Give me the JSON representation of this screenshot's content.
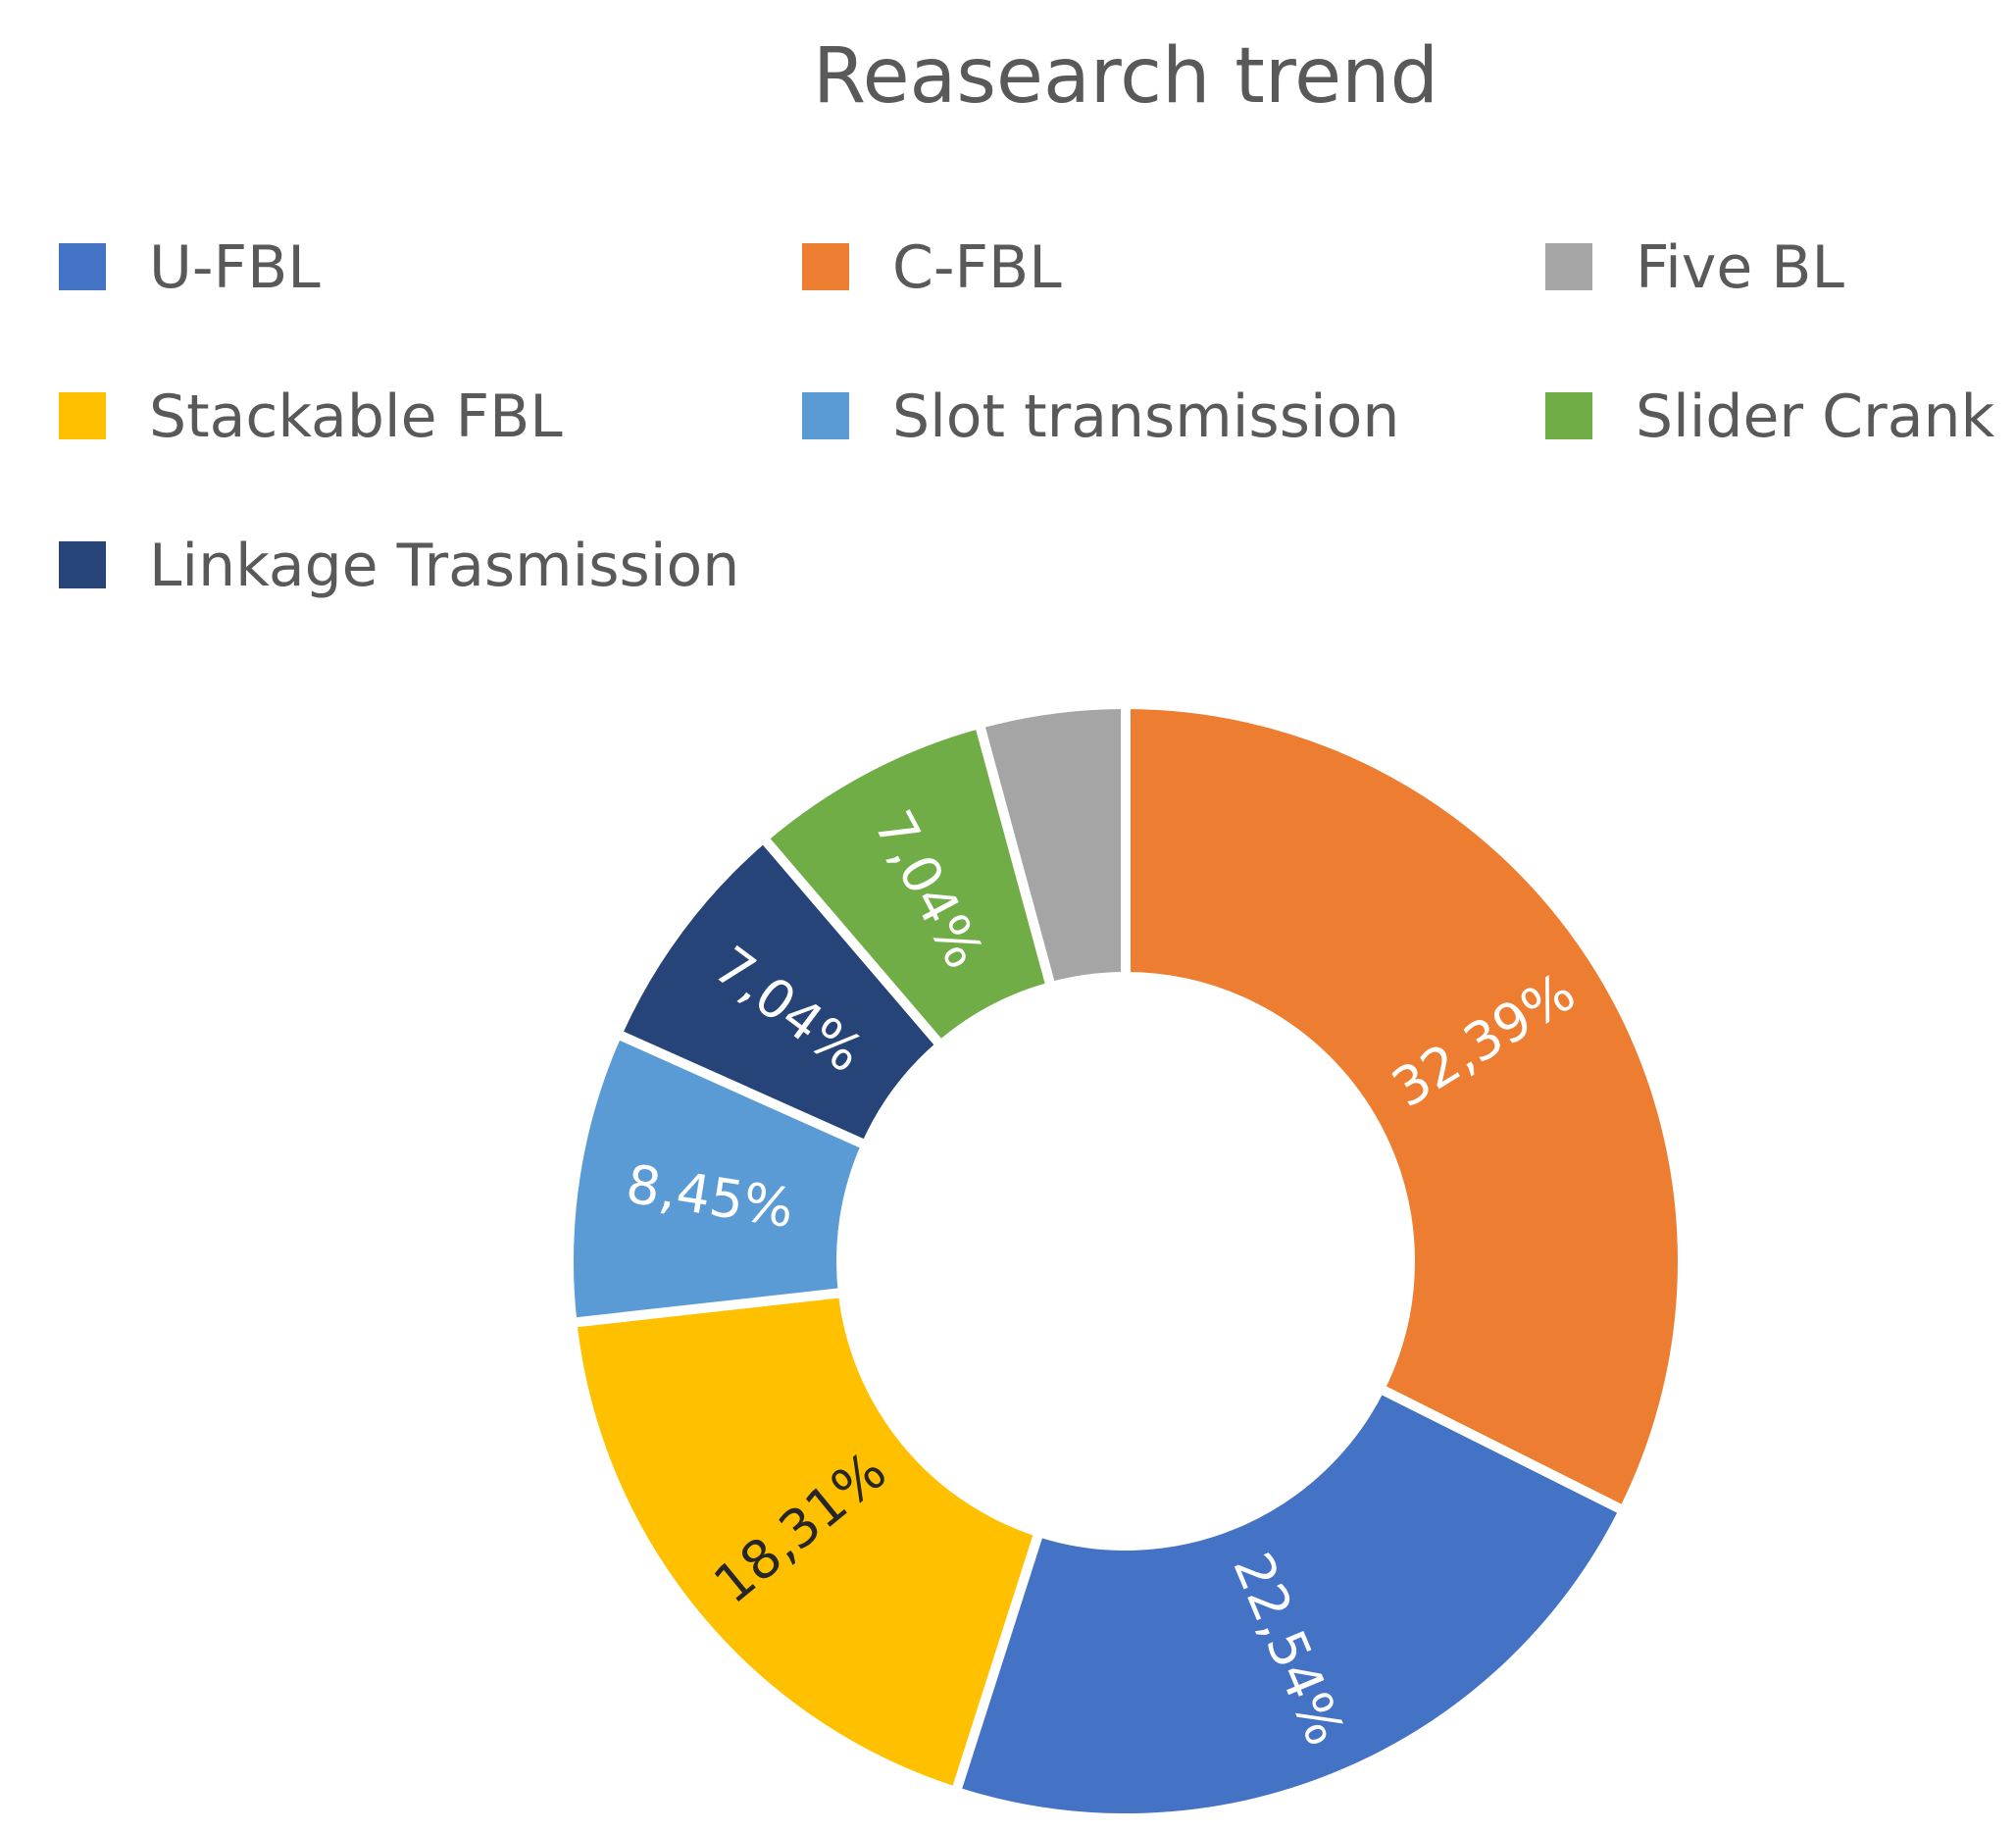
{
  "chart_data": {
    "type": "pie",
    "variant": "donut",
    "title": "Reasearch trend",
    "legend_position": "top",
    "slices": [
      {
        "name": "C-FBL",
        "value": 32.39,
        "label": "32,39%",
        "color": "#ED7D31",
        "label_color": "#FFFFFF"
      },
      {
        "name": "U-FBL",
        "value": 22.54,
        "label": "22,54%",
        "color": "#4472C4",
        "label_color": "#FFFFFF"
      },
      {
        "name": "Stackable FBL",
        "value": 18.31,
        "label": "18,31%",
        "color": "#FFC000",
        "label_color": "#262626"
      },
      {
        "name": "Slot transmission",
        "value": 8.45,
        "label": "8,45%",
        "color": "#5B9BD5",
        "label_color": "#FFFFFF"
      },
      {
        "name": "Linkage Trasmission",
        "value": 7.04,
        "label": "7,04%",
        "color": "#264478",
        "label_color": "#FFFFFF"
      },
      {
        "name": "Slider Crank",
        "value": 7.04,
        "label": "7,04%",
        "color": "#70AD47",
        "label_color": "#FFFFFF"
      },
      {
        "name": "Five BL",
        "value": 4.23,
        "label": "",
        "color": "#A5A5A5",
        "label_color": "#FFFFFF"
      }
    ],
    "legend": [
      {
        "name": "U-FBL",
        "color": "#4472C4"
      },
      {
        "name": "C-FBL",
        "color": "#ED7D31"
      },
      {
        "name": "Five BL",
        "color": "#A5A5A5"
      },
      {
        "name": "Stackable FBL",
        "color": "#FFC000"
      },
      {
        "name": "Slot transmission",
        "color": "#5B9BD5"
      },
      {
        "name": "Slider Crank",
        "color": "#70AD47"
      },
      {
        "name": "Linkage Trasmission",
        "color": "#264478"
      }
    ]
  }
}
